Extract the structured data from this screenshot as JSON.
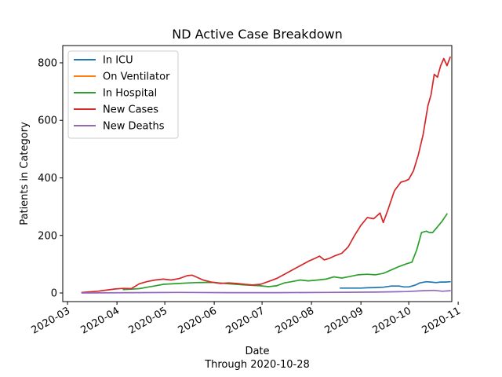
{
  "chart_data": {
    "type": "line",
    "title": "ND Active Case Breakdown",
    "xlabel": "Date",
    "xlabel_sub": "Through 2020-10-28",
    "ylabel": "Patients in Category",
    "xlim": [
      "2020-02-27",
      "2020-10-28"
    ],
    "ylim": [
      -30,
      860
    ],
    "x_ticks": [
      "2020-03",
      "2020-04",
      "2020-05",
      "2020-06",
      "2020-07",
      "2020-08",
      "2020-09",
      "2020-10",
      "2020-11"
    ],
    "y_ticks": [
      0,
      200,
      400,
      600,
      800
    ],
    "grid": false,
    "legend_position": "upper-left",
    "series": [
      {
        "name": "In ICU",
        "color": "#1f77b4",
        "points": [
          [
            "2020-08-19",
            17
          ],
          [
            "2020-08-25",
            17
          ],
          [
            "2020-09-01",
            17
          ],
          [
            "2020-09-05",
            18
          ],
          [
            "2020-09-10",
            19
          ],
          [
            "2020-09-15",
            20
          ],
          [
            "2020-09-20",
            24
          ],
          [
            "2020-09-25",
            24
          ],
          [
            "2020-09-28",
            21
          ],
          [
            "2020-10-01",
            21
          ],
          [
            "2020-10-05",
            27
          ],
          [
            "2020-10-08",
            35
          ],
          [
            "2020-10-12",
            39
          ],
          [
            "2020-10-15",
            38
          ],
          [
            "2020-10-18",
            36
          ],
          [
            "2020-10-21",
            38
          ],
          [
            "2020-10-24",
            38
          ],
          [
            "2020-10-27",
            39
          ]
        ]
      },
      {
        "name": "On Ventilator",
        "color": "#ff7f0e",
        "points": []
      },
      {
        "name": "In Hospital",
        "color": "#2ca02c",
        "points": [
          [
            "2020-04-05",
            12
          ],
          [
            "2020-04-10",
            13
          ],
          [
            "2020-04-15",
            15
          ],
          [
            "2020-04-20",
            20
          ],
          [
            "2020-04-25",
            25
          ],
          [
            "2020-04-30",
            30
          ],
          [
            "2020-05-10",
            33
          ],
          [
            "2020-05-20",
            36
          ],
          [
            "2020-05-31",
            37
          ],
          [
            "2020-06-10",
            32
          ],
          [
            "2020-06-20",
            28
          ],
          [
            "2020-06-30",
            25
          ],
          [
            "2020-07-05",
            22
          ],
          [
            "2020-07-10",
            25
          ],
          [
            "2020-07-15",
            35
          ],
          [
            "2020-07-20",
            40
          ],
          [
            "2020-07-25",
            45
          ],
          [
            "2020-07-30",
            42
          ],
          [
            "2020-08-05",
            45
          ],
          [
            "2020-08-10",
            48
          ],
          [
            "2020-08-15",
            56
          ],
          [
            "2020-08-20",
            52
          ],
          [
            "2020-08-25",
            57
          ],
          [
            "2020-08-30",
            63
          ],
          [
            "2020-09-05",
            65
          ],
          [
            "2020-09-10",
            63
          ],
          [
            "2020-09-15",
            68
          ],
          [
            "2020-09-20",
            80
          ],
          [
            "2020-09-25",
            92
          ],
          [
            "2020-09-30",
            102
          ],
          [
            "2020-10-03",
            107
          ],
          [
            "2020-10-06",
            150
          ],
          [
            "2020-10-09",
            210
          ],
          [
            "2020-10-12",
            215
          ],
          [
            "2020-10-14",
            210
          ],
          [
            "2020-10-16",
            210
          ],
          [
            "2020-10-19",
            230
          ],
          [
            "2020-10-22",
            250
          ],
          [
            "2020-10-25",
            275
          ]
        ]
      },
      {
        "name": "New Cases",
        "color": "#d62728",
        "points": [
          [
            "2020-03-10",
            2
          ],
          [
            "2020-03-20",
            6
          ],
          [
            "2020-03-31",
            14
          ],
          [
            "2020-04-05",
            16
          ],
          [
            "2020-04-10",
            15
          ],
          [
            "2020-04-15",
            32
          ],
          [
            "2020-04-20",
            40
          ],
          [
            "2020-04-25",
            45
          ],
          [
            "2020-04-30",
            48
          ],
          [
            "2020-05-05",
            45
          ],
          [
            "2020-05-10",
            50
          ],
          [
            "2020-05-15",
            60
          ],
          [
            "2020-05-18",
            62
          ],
          [
            "2020-05-21",
            55
          ],
          [
            "2020-05-25",
            45
          ],
          [
            "2020-05-30",
            38
          ],
          [
            "2020-06-05",
            33
          ],
          [
            "2020-06-10",
            35
          ],
          [
            "2020-06-15",
            33
          ],
          [
            "2020-06-20",
            30
          ],
          [
            "2020-06-25",
            28
          ],
          [
            "2020-06-30",
            30
          ],
          [
            "2020-07-05",
            40
          ],
          [
            "2020-07-10",
            50
          ],
          [
            "2020-07-15",
            65
          ],
          [
            "2020-07-20",
            80
          ],
          [
            "2020-07-25",
            95
          ],
          [
            "2020-07-30",
            110
          ],
          [
            "2020-08-03",
            120
          ],
          [
            "2020-08-06",
            128
          ],
          [
            "2020-08-09",
            115
          ],
          [
            "2020-08-12",
            120
          ],
          [
            "2020-08-16",
            130
          ],
          [
            "2020-08-20",
            138
          ],
          [
            "2020-08-24",
            160
          ],
          [
            "2020-08-28",
            200
          ],
          [
            "2020-09-01",
            235
          ],
          [
            "2020-09-05",
            262
          ],
          [
            "2020-09-09",
            258
          ],
          [
            "2020-09-13",
            278
          ],
          [
            "2020-09-15",
            245
          ],
          [
            "2020-09-18",
            290
          ],
          [
            "2020-09-22",
            355
          ],
          [
            "2020-09-26",
            385
          ],
          [
            "2020-09-29",
            390
          ],
          [
            "2020-10-01",
            395
          ],
          [
            "2020-10-04",
            425
          ],
          [
            "2020-10-07",
            480
          ],
          [
            "2020-10-10",
            550
          ],
          [
            "2020-10-13",
            650
          ],
          [
            "2020-10-15",
            690
          ],
          [
            "2020-10-17",
            760
          ],
          [
            "2020-10-19",
            750
          ],
          [
            "2020-10-21",
            790
          ],
          [
            "2020-10-23",
            815
          ],
          [
            "2020-10-25",
            790
          ],
          [
            "2020-10-27",
            820
          ]
        ]
      },
      {
        "name": "New Deaths",
        "color": "#9467bd",
        "points": [
          [
            "2020-03-10",
            0
          ],
          [
            "2020-04-10",
            1
          ],
          [
            "2020-05-10",
            2
          ],
          [
            "2020-06-10",
            1
          ],
          [
            "2020-07-10",
            1
          ],
          [
            "2020-08-10",
            2
          ],
          [
            "2020-09-10",
            3
          ],
          [
            "2020-09-30",
            5
          ],
          [
            "2020-10-10",
            8
          ],
          [
            "2020-10-17",
            9
          ],
          [
            "2020-10-22",
            6
          ],
          [
            "2020-10-27",
            8
          ]
        ]
      }
    ]
  }
}
